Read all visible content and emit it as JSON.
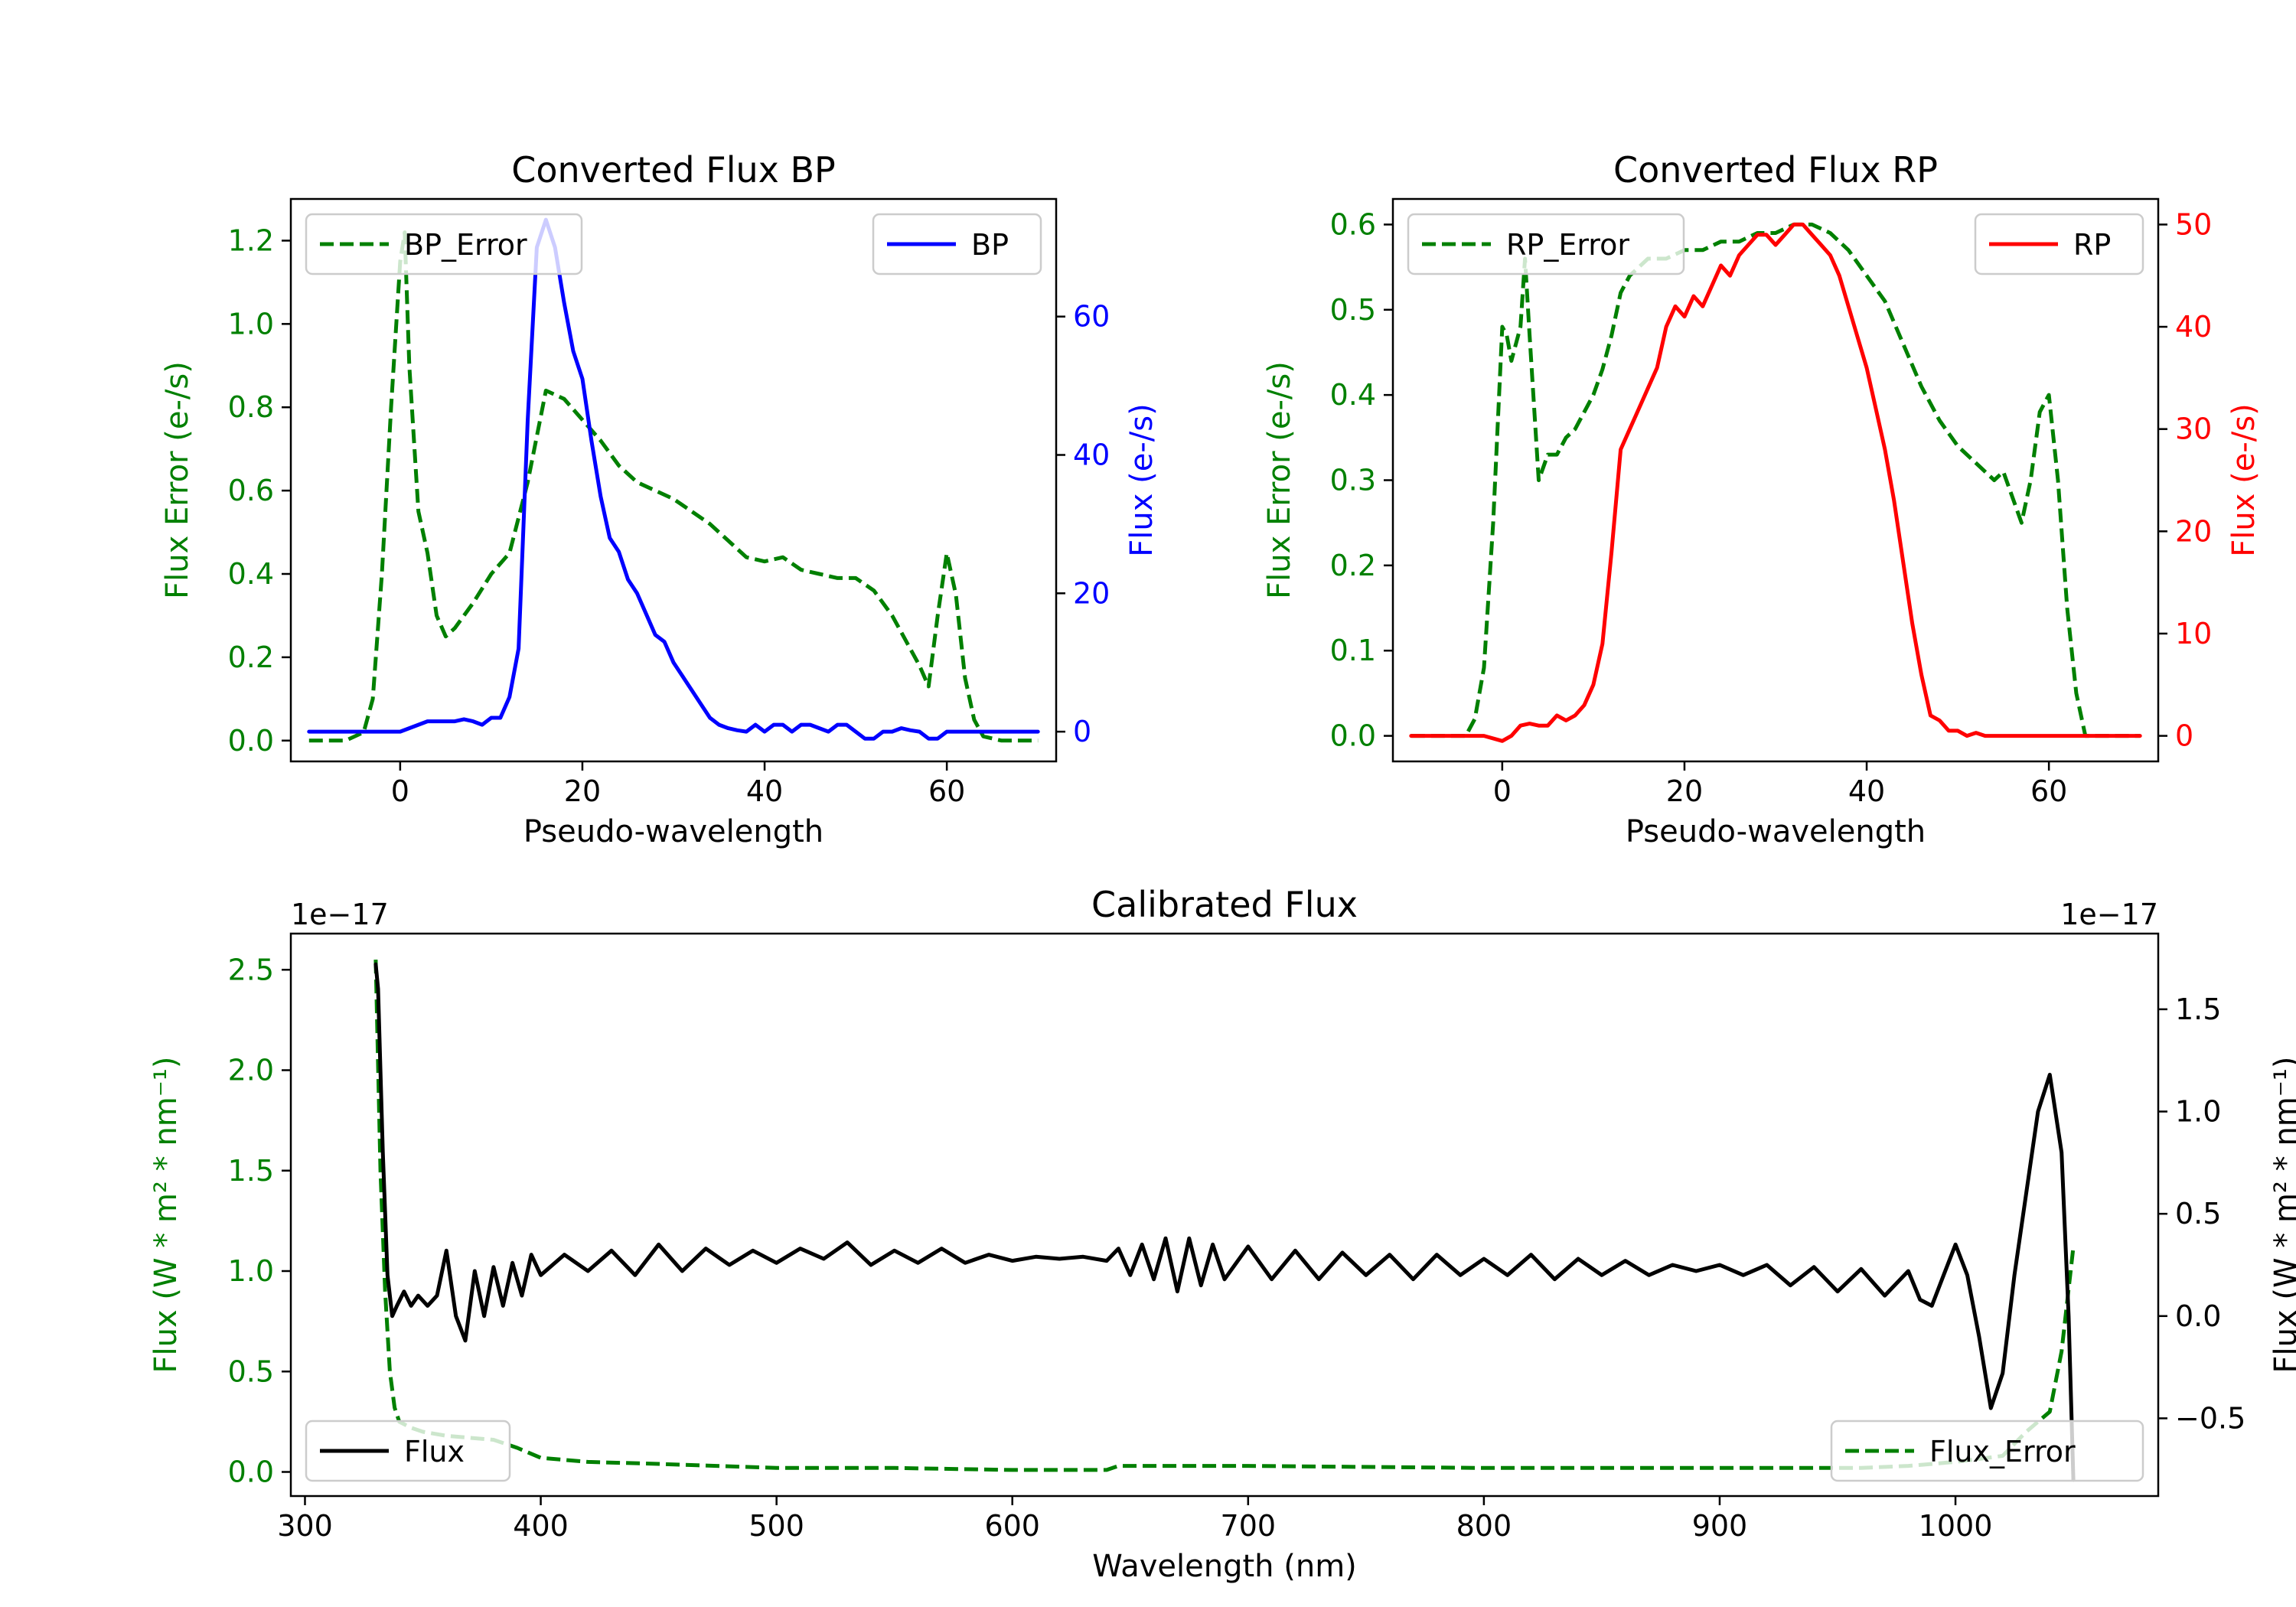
{
  "chart_data": [
    {
      "id": "bp",
      "type": "line",
      "title": "Converted Flux BP",
      "xlabel": "Pseudo-wavelength",
      "ylabel_left": "Flux Error (e-/s)",
      "ylabel_right": "Flux (e-/s)",
      "xlim": [
        -12,
        72
      ],
      "ylim_left": [
        -0.05,
        1.3
      ],
      "ylim_right": [
        -4.3,
        77
      ],
      "xticks": [
        0,
        20,
        40,
        60
      ],
      "yticks_left": [
        0.0,
        0.2,
        0.4,
        0.6,
        0.8,
        1.0,
        1.2
      ],
      "yticks_right": [
        0,
        20,
        40,
        60
      ],
      "left_color": "#008000",
      "right_color": "#0000ff",
      "series": [
        {
          "name": "BP_Error",
          "axis": "left",
          "style": "dashed",
          "color": "#008000",
          "x": [
            -10,
            -6,
            -4,
            -3,
            -2,
            -1,
            0,
            0.5,
            1,
            2,
            3,
            4,
            5,
            6,
            8,
            10,
            12,
            14,
            16,
            18,
            20,
            22,
            24,
            26,
            28,
            30,
            32,
            34,
            36,
            38,
            40,
            42,
            44,
            46,
            48,
            50,
            52,
            54,
            56,
            57,
            58,
            59,
            60,
            61,
            62,
            63,
            64,
            66,
            70
          ],
          "y": [
            0.0,
            0.0,
            0.02,
            0.1,
            0.4,
            0.8,
            1.15,
            1.22,
            0.9,
            0.55,
            0.45,
            0.3,
            0.25,
            0.27,
            0.33,
            0.4,
            0.45,
            0.62,
            0.84,
            0.82,
            0.77,
            0.72,
            0.66,
            0.62,
            0.6,
            0.58,
            0.55,
            0.52,
            0.48,
            0.44,
            0.43,
            0.44,
            0.41,
            0.4,
            0.39,
            0.39,
            0.36,
            0.3,
            0.22,
            0.18,
            0.13,
            0.3,
            0.45,
            0.35,
            0.15,
            0.05,
            0.01,
            0.0,
            0.0
          ]
        },
        {
          "name": "BP",
          "axis": "right",
          "style": "solid",
          "color": "#0000ff",
          "x": [
            -10,
            -5,
            0,
            1,
            2,
            3,
            4,
            5,
            6,
            7,
            8,
            9,
            10,
            11,
            12,
            13,
            14,
            15,
            16,
            17,
            18,
            19,
            20,
            21,
            22,
            23,
            24,
            25,
            26,
            27,
            28,
            29,
            30,
            31,
            32,
            33,
            34,
            35,
            36,
            37,
            38,
            39,
            40,
            41,
            42,
            43,
            44,
            45,
            46,
            47,
            48,
            49,
            50,
            51,
            52,
            53,
            54,
            55,
            56,
            57,
            58,
            59,
            60,
            62,
            65,
            70
          ],
          "y": [
            0,
            0,
            0,
            0.5,
            1,
            1.5,
            1.5,
            1.5,
            1.5,
            1.8,
            1.5,
            1,
            2,
            2,
            5,
            12,
            45,
            70,
            74,
            70,
            62,
            55,
            51,
            42,
            34,
            28,
            26,
            22,
            20,
            17,
            14,
            13,
            10,
            8,
            6,
            4,
            2,
            1,
            0.5,
            0.2,
            0,
            1,
            0,
            1,
            1,
            0,
            1,
            1,
            0.5,
            0,
            1,
            1,
            0,
            -1,
            -1,
            0,
            0,
            0.5,
            0.2,
            0,
            -1,
            -1,
            0,
            0,
            0,
            0
          ]
        }
      ],
      "legend": [
        {
          "label": "BP_Error",
          "position": "upper-left"
        },
        {
          "label": "BP",
          "position": "upper-right"
        }
      ]
    },
    {
      "id": "rp",
      "type": "line",
      "title": "Converted Flux RP",
      "xlabel": "Pseudo-wavelength",
      "ylabel_left": "Flux Error (e-/s)",
      "ylabel_right": "Flux (e-/s)",
      "xlim": [
        -12,
        72
      ],
      "ylim_left": [
        -0.03,
        0.63
      ],
      "ylim_right": [
        -2.5,
        52.5
      ],
      "xticks": [
        0,
        20,
        40,
        60
      ],
      "yticks_left": [
        0.0,
        0.1,
        0.2,
        0.3,
        0.4,
        0.5,
        0.6
      ],
      "yticks_right": [
        0,
        10,
        20,
        30,
        40,
        50
      ],
      "left_color": "#008000",
      "right_color": "#ff0000",
      "series": [
        {
          "name": "RP_Error",
          "axis": "left",
          "style": "dashed",
          "color": "#008000",
          "x": [
            -10,
            -4,
            -3,
            -2,
            -1,
            0,
            0.5,
            1,
            2,
            2.5,
            3,
            4,
            5,
            6,
            7,
            8,
            9,
            10,
            11,
            12,
            13,
            14,
            16,
            18,
            20,
            22,
            24,
            26,
            28,
            30,
            32,
            34,
            36,
            38,
            40,
            42,
            44,
            46,
            48,
            50,
            52,
            54,
            55,
            56,
            57,
            58,
            59,
            60,
            61,
            62,
            63,
            64,
            70
          ],
          "y": [
            0.0,
            0.0,
            0.02,
            0.08,
            0.25,
            0.48,
            0.47,
            0.44,
            0.48,
            0.56,
            0.47,
            0.3,
            0.33,
            0.33,
            0.35,
            0.36,
            0.38,
            0.4,
            0.43,
            0.47,
            0.52,
            0.54,
            0.56,
            0.56,
            0.57,
            0.57,
            0.58,
            0.58,
            0.59,
            0.59,
            0.6,
            0.6,
            0.59,
            0.57,
            0.54,
            0.51,
            0.46,
            0.41,
            0.37,
            0.34,
            0.32,
            0.3,
            0.31,
            0.28,
            0.25,
            0.3,
            0.38,
            0.4,
            0.3,
            0.15,
            0.05,
            0.0,
            0.0
          ]
        },
        {
          "name": "RP",
          "axis": "right",
          "style": "solid",
          "color": "#ff0000",
          "x": [
            -10,
            -4,
            -2,
            0,
            1,
            2,
            3,
            4,
            5,
            6,
            7,
            8,
            9,
            10,
            11,
            12,
            13,
            14,
            15,
            16,
            17,
            18,
            19,
            20,
            21,
            22,
            23,
            24,
            25,
            26,
            27,
            28,
            29,
            30,
            31,
            32,
            33,
            34,
            35,
            36,
            37,
            38,
            39,
            40,
            41,
            42,
            43,
            44,
            45,
            46,
            47,
            48,
            49,
            50,
            51,
            52,
            53,
            54,
            55,
            56,
            58,
            60,
            65,
            70
          ],
          "y": [
            0,
            0,
            0,
            -0.5,
            0,
            1,
            1.2,
            1,
            1,
            2,
            1.5,
            2,
            3,
            5,
            9,
            18,
            28,
            30,
            32,
            34,
            36,
            40,
            42,
            41,
            43,
            42,
            44,
            46,
            45,
            47,
            48,
            49,
            49,
            48,
            49,
            50,
            50,
            49,
            48,
            47,
            45,
            42,
            39,
            36,
            32,
            28,
            23,
            17,
            11,
            6,
            2,
            1.5,
            0.5,
            0.5,
            0,
            0.3,
            0,
            0,
            0,
            0,
            0,
            0,
            0,
            0
          ]
        }
      ],
      "legend": [
        {
          "label": "RP_Error",
          "position": "upper-left"
        },
        {
          "label": "RP",
          "position": "upper-right"
        }
      ]
    },
    {
      "id": "cal",
      "type": "line",
      "title": "Calibrated Flux",
      "xlabel": "Wavelength (nm)",
      "ylabel_left": "Flux (W * m² * nm⁻¹)",
      "ylabel_right": "Flux (W * m² * nm⁻¹)",
      "offset_left": "1e−17",
      "offset_right": "1e−17",
      "xlim": [
        294,
        1086
      ],
      "ylim_left": [
        -0.12,
        2.68
      ],
      "ylim_right": [
        -0.88,
        1.87
      ],
      "xticks": [
        300,
        400,
        500,
        600,
        700,
        800,
        900,
        1000
      ],
      "yticks_left": [
        0.0,
        0.5,
        1.0,
        1.5,
        2.0,
        2.5
      ],
      "yticks_right": [
        -0.5,
        0.0,
        0.5,
        1.0,
        1.5
      ],
      "yticks_right_labels": [
        "−0.5",
        "0.0",
        "0.5",
        "1.0",
        "1.5"
      ],
      "left_color": "#008000",
      "right_color": "#000000",
      "series": [
        {
          "name": "Flux_Error",
          "axis": "left",
          "style": "dashed",
          "color": "#008000",
          "x": [
            330,
            332,
            334,
            336,
            338,
            340,
            345,
            350,
            360,
            370,
            380,
            390,
            400,
            420,
            450,
            500,
            550,
            600,
            640,
            645,
            700,
            800,
            900,
            960,
            980,
            1000,
            1020,
            1030,
            1040,
            1045,
            1050
          ],
          "y": [
            2.55,
            1.5,
            0.9,
            0.5,
            0.32,
            0.25,
            0.22,
            0.2,
            0.18,
            0.17,
            0.16,
            0.12,
            0.07,
            0.05,
            0.04,
            0.02,
            0.02,
            0.01,
            0.01,
            0.03,
            0.03,
            0.02,
            0.02,
            0.02,
            0.03,
            0.05,
            0.08,
            0.2,
            0.3,
            0.6,
            1.12
          ]
        },
        {
          "name": "Flux",
          "axis": "right",
          "style": "solid",
          "color": "#000000",
          "osc_control_x": [
            330,
            336,
            340,
            345,
            350,
            355,
            360,
            365,
            370,
            375,
            380,
            385,
            390,
            400,
            410,
            430,
            450,
            500,
            530,
            560,
            600,
            640,
            650,
            700,
            800,
            900,
            950,
            980,
            1000,
            1020,
            1030,
            1040,
            1045,
            1050
          ],
          "osc_control_y": [
            1.72,
            0.06,
            0.06,
            0.1,
            0.05,
            0.08,
            0.3,
            0.0,
            0.25,
            0.0,
            0.2,
            0.1,
            0.2,
            0.25,
            0.25,
            0.3,
            0.3,
            0.28,
            0.3,
            0.3,
            0.28,
            0.28,
            0.25,
            0.22,
            0.22,
            0.22,
            0.2,
            0.15,
            0.2,
            0.2,
            0.5,
            1.15,
            0.3,
            -0.8
          ],
          "x": [
            330,
            331,
            333,
            335,
            337,
            339,
            342,
            345,
            348,
            352,
            356,
            360,
            364,
            368,
            372,
            376,
            380,
            384,
            388,
            392,
            396,
            400,
            410,
            420,
            430,
            440,
            450,
            460,
            470,
            480,
            490,
            500,
            510,
            520,
            530,
            540,
            550,
            560,
            570,
            580,
            590,
            600,
            610,
            620,
            630,
            640,
            645,
            650,
            655,
            660,
            665,
            670,
            675,
            680,
            685,
            690,
            700,
            710,
            720,
            730,
            740,
            750,
            760,
            770,
            780,
            790,
            800,
            810,
            820,
            830,
            840,
            850,
            860,
            870,
            880,
            890,
            900,
            910,
            920,
            930,
            940,
            950,
            960,
            970,
            980,
            985,
            990,
            995,
            1000,
            1005,
            1010,
            1015,
            1020,
            1025,
            1030,
            1035,
            1040,
            1045,
            1048,
            1050
          ],
          "y": [
            1.72,
            1.6,
            0.8,
            0.2,
            0.0,
            0.05,
            0.12,
            0.05,
            0.1,
            0.05,
            0.1,
            0.32,
            0.0,
            -0.12,
            0.22,
            0.0,
            0.24,
            0.05,
            0.26,
            0.1,
            0.3,
            0.2,
            0.3,
            0.22,
            0.32,
            0.2,
            0.35,
            0.22,
            0.33,
            0.25,
            0.32,
            0.26,
            0.33,
            0.28,
            0.36,
            0.25,
            0.32,
            0.26,
            0.33,
            0.26,
            0.3,
            0.27,
            0.29,
            0.28,
            0.29,
            0.27,
            0.33,
            0.2,
            0.35,
            0.18,
            0.38,
            0.12,
            0.38,
            0.15,
            0.35,
            0.18,
            0.34,
            0.18,
            0.32,
            0.18,
            0.31,
            0.2,
            0.3,
            0.18,
            0.3,
            0.2,
            0.28,
            0.2,
            0.3,
            0.18,
            0.28,
            0.2,
            0.27,
            0.2,
            0.25,
            0.22,
            0.25,
            0.2,
            0.25,
            0.15,
            0.24,
            0.12,
            0.23,
            0.1,
            0.22,
            0.08,
            0.05,
            0.2,
            0.35,
            0.2,
            -0.1,
            -0.45,
            -0.28,
            0.2,
            0.6,
            1.0,
            1.18,
            0.8,
            0.0,
            -0.8
          ]
        }
      ],
      "legend": [
        {
          "label": "Flux",
          "position": "lower-left"
        },
        {
          "label": "Flux_Error",
          "position": "lower-right"
        }
      ]
    }
  ]
}
